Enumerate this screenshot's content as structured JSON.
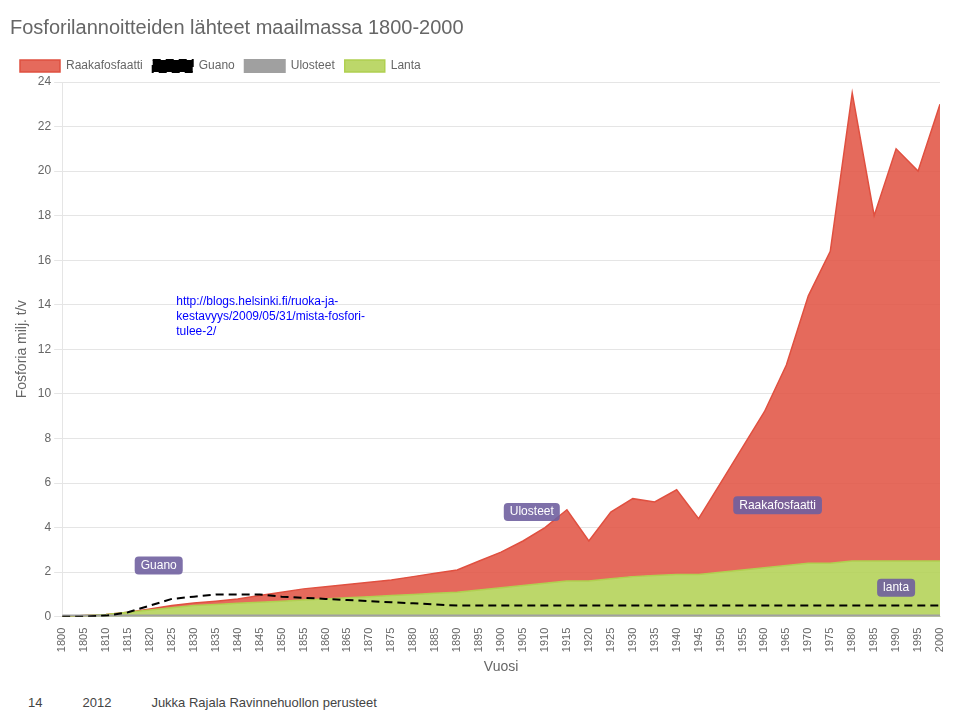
{
  "chart_data": {
    "type": "line",
    "title": "Fosforilannoitteiden lähteet maailmassa 1800-2000",
    "xlabel": "Vuosi",
    "ylabel": "Fosforia milj. t/v",
    "x": [
      1800,
      1805,
      1810,
      1815,
      1820,
      1825,
      1830,
      1835,
      1840,
      1845,
      1850,
      1855,
      1860,
      1865,
      1870,
      1875,
      1880,
      1885,
      1890,
      1895,
      1900,
      1905,
      1910,
      1915,
      1920,
      1925,
      1930,
      1935,
      1940,
      1945,
      1950,
      1955,
      1960,
      1965,
      1970,
      1975,
      1980,
      1985,
      1990,
      1995,
      2000
    ],
    "xlim": [
      1800,
      2000
    ],
    "xticks": [
      1800,
      1805,
      1810,
      1815,
      1820,
      1825,
      1830,
      1835,
      1840,
      1845,
      1850,
      1855,
      1860,
      1865,
      1870,
      1875,
      1880,
      1885,
      1890,
      1895,
      1900,
      1905,
      1910,
      1915,
      1920,
      1925,
      1930,
      1935,
      1940,
      1945,
      1950,
      1955,
      1960,
      1965,
      1970,
      1975,
      1980,
      1985,
      1990,
      1995,
      2000
    ],
    "ylim": [
      0,
      24
    ],
    "yticks": [
      0,
      2,
      4,
      6,
      8,
      10,
      12,
      14,
      16,
      18,
      20,
      22,
      24
    ],
    "grid": "y",
    "legend": "upper left",
    "stacked": true,
    "series": [
      {
        "name": "Raakafosfaatti",
        "type": "area",
        "color": "#e05040",
        "values": [
          0.0,
          0.0,
          0.0,
          0.0,
          0.05,
          0.1,
          0.12,
          0.15,
          0.2,
          0.3,
          0.4,
          0.5,
          0.55,
          0.6,
          0.65,
          0.7,
          0.8,
          0.9,
          1.0,
          1.3,
          1.6,
          2.0,
          2.5,
          3.2,
          1.8,
          3.0,
          3.5,
          3.3,
          3.8,
          2.5,
          4.0,
          5.5,
          7.0,
          9.0,
          12.0,
          14.0,
          21.0,
          15.5,
          18.5,
          17.5,
          20.5
        ]
      },
      {
        "name": "Guano",
        "type": "line",
        "color": "black",
        "line_style": "dashed",
        "values": [
          0.0,
          0.0,
          0.05,
          0.2,
          0.5,
          0.8,
          0.9,
          1.0,
          1.0,
          1.0,
          0.9,
          0.85,
          0.8,
          0.75,
          0.7,
          0.65,
          0.6,
          0.55,
          0.5,
          0.5,
          0.5,
          0.5,
          0.5,
          0.5,
          0.5,
          0.5,
          0.5,
          0.5,
          0.5,
          0.5,
          0.5,
          0.5,
          0.5,
          0.5,
          0.5,
          0.5,
          0.5,
          0.5,
          0.5,
          0.5,
          0.5
        ]
      },
      {
        "name": "Ulosteet",
        "type": "line",
        "color": "#a0a0a0",
        "line_style": "solid",
        "values": [
          0.05,
          0.05,
          0.05,
          0.05,
          0.05,
          0.05,
          0.05,
          0.05,
          0.05,
          0.05,
          0.05,
          0.05,
          0.05,
          0.05,
          0.05,
          0.05,
          0.05,
          0.05,
          0.05,
          0.05,
          0.05,
          0.05,
          0.05,
          0.05,
          0.05,
          0.05,
          0.05,
          0.05,
          0.05,
          0.05,
          0.05,
          0.05,
          0.05,
          0.05,
          0.05,
          0.05,
          0.05,
          0.05,
          0.05,
          0.05,
          0.05
        ]
      },
      {
        "name": "Lanta",
        "type": "area",
        "color": "#b0d050",
        "values": [
          0.0,
          0.05,
          0.1,
          0.2,
          0.3,
          0.4,
          0.5,
          0.55,
          0.6,
          0.65,
          0.7,
          0.75,
          0.8,
          0.85,
          0.9,
          0.95,
          1.0,
          1.05,
          1.1,
          1.2,
          1.3,
          1.4,
          1.5,
          1.6,
          1.6,
          1.7,
          1.8,
          1.85,
          1.9,
          1.9,
          2.0,
          2.1,
          2.2,
          2.3,
          2.4,
          2.4,
          2.5,
          2.5,
          2.5,
          2.5,
          2.5
        ]
      }
    ],
    "annotations": [
      {
        "text": "Guano",
        "x": 1822,
        "y": 2.3
      },
      {
        "text": "Ulosteet",
        "x": 1907,
        "y": 4.7
      },
      {
        "text": "Raakafosfaatti",
        "x": 1963,
        "y": 5.0
      },
      {
        "text": "lanta",
        "x": 1990,
        "y": 1.3
      }
    ],
    "source": [
      "http://blogs.helsinki.fi/ruoka-ja-",
      "kestavyys/2009/05/31/mista-fosfori-",
      "tulee-2/"
    ],
    "footer": [
      "14",
      "2012",
      "Jukka Rajala Ravinnehuollon perusteet"
    ]
  }
}
